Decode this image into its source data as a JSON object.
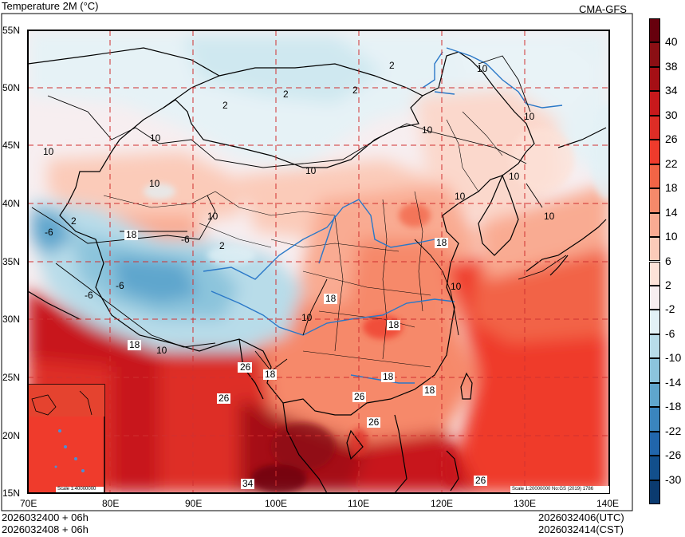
{
  "header": {
    "title": "Temperature  2M (°C)",
    "source": "CMA-GFS"
  },
  "footer": {
    "init_left_1": "2026032400 + 06h",
    "init_left_2": "2026032408 + 06h",
    "valid_utc": "2026032406(UTC)",
    "valid_cst": "2026032414(CST)"
  },
  "axes": {
    "lat_labels": [
      "55N",
      "50N",
      "45N",
      "40N",
      "35N",
      "30N",
      "25N",
      "20N",
      "15N"
    ],
    "lon_labels": [
      "70E",
      "80E",
      "90E",
      "100E",
      "110E",
      "120E",
      "130E",
      "140E"
    ]
  },
  "colorbar": {
    "labels": [
      "40",
      "38",
      "34",
      "30",
      "26",
      "22",
      "18",
      "14",
      "10",
      "6",
      "2",
      "-2",
      "-6",
      "-10",
      "-14",
      "-18",
      "-22",
      "-26",
      "-30"
    ],
    "colors": [
      "#67000d",
      "#8b0f14",
      "#a50f15",
      "#c8191c",
      "#de2d26",
      "#ef3b2c",
      "#f26446",
      "#f6896a",
      "#f9ab92",
      "#fbcbb9",
      "#fde2d8",
      "#f7eef0",
      "#e2f1f6",
      "#b8dce9",
      "#8cc4dc",
      "#5fa6cd",
      "#3a85be",
      "#2166ac",
      "#124f8c",
      "#0b3b70"
    ]
  },
  "inset": {
    "scale": "Scale 1:40000000"
  },
  "scale_note": "Scale 1:20000000 No:GS (2019) 1786",
  "contour_labels": [
    "2",
    "2",
    "2",
    "2",
    "10",
    "10",
    "10",
    "10",
    "10",
    "10",
    "10",
    "10",
    "10",
    "10",
    "10",
    "10",
    "10",
    "-6",
    "-6",
    "-6",
    "-6",
    "2",
    "2",
    "18",
    "18",
    "18",
    "18",
    "18",
    "18",
    "18",
    "26",
    "26",
    "26",
    "26",
    "26",
    "34",
    "18",
    "10",
    "26"
  ]
}
